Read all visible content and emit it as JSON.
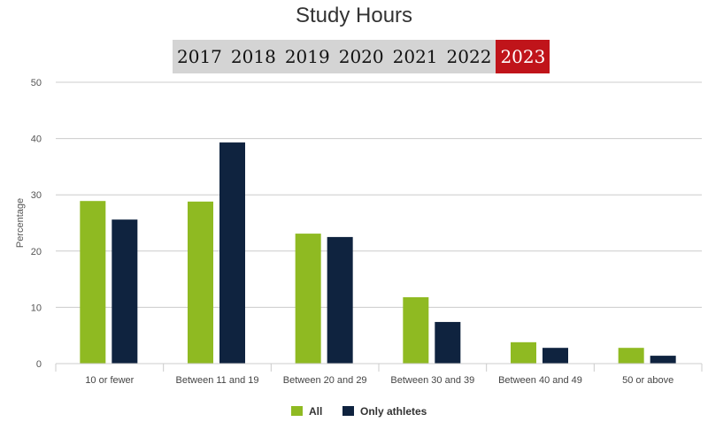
{
  "chart_data": {
    "type": "bar",
    "title": "Study Hours",
    "years": [
      "2017",
      "2018",
      "2019",
      "2020",
      "2021",
      "2022",
      "2023"
    ],
    "selected_year": "2023",
    "categories": [
      "10 or fewer",
      "Between 11 and 19",
      "Between 20 and 29",
      "Between 30 and 39",
      "Between 40 and 49",
      "50 or above"
    ],
    "series": [
      {
        "name": "All",
        "color": "#8fba22",
        "values": [
          28.9,
          28.8,
          23.1,
          11.8,
          3.8,
          2.8
        ]
      },
      {
        "name": "Only athletes",
        "color": "#0f233f",
        "values": [
          25.6,
          39.3,
          22.5,
          7.4,
          2.8,
          1.4
        ]
      }
    ],
    "ylabel": "Percentage",
    "xlabel": "",
    "ylim": [
      0,
      50
    ],
    "yticks": [
      "0",
      "10",
      "20",
      "30",
      "40",
      "50"
    ],
    "grid": true,
    "legend": "bottom"
  }
}
